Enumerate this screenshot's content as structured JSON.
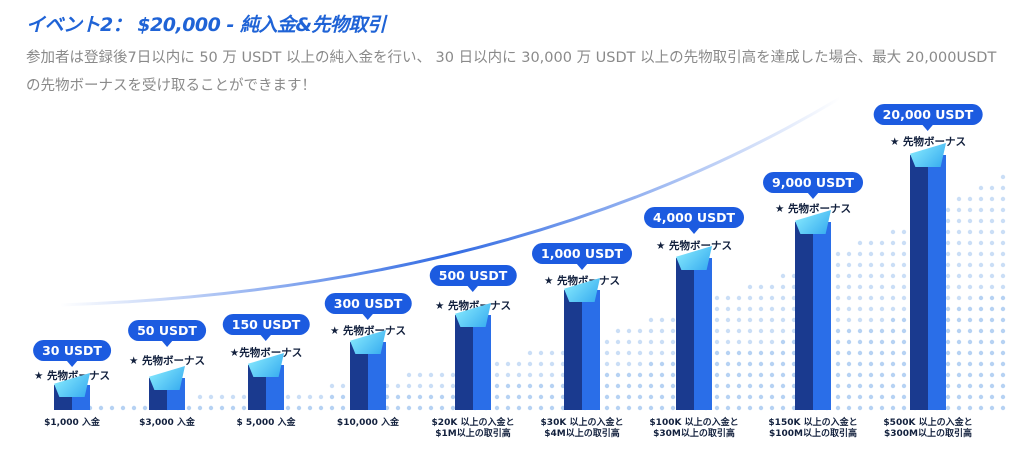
{
  "header": {
    "title": "イベント2： $20,000 - 純入金&先物取引",
    "description": "参加者は登録後7日以内に 50 万 USDT 以上の純入金を行い、 30 日以内に 30,000 万 USDT 以上の先物取引高を達成した場合、最大 20,000USDT の先物ボーナスを受け取ることができます！"
  },
  "colors": {
    "accent": "#1c5be0",
    "bar_dark": "#1a3a8f",
    "bar_light": "#2a6ee8",
    "cap": "#5fd4f7",
    "text_dark": "#12203d"
  },
  "tiers": [
    {
      "reward": "30 USDT",
      "bonus": "★ 先物ボーナス",
      "condition_1": "$1,000 入金",
      "condition_2": ""
    },
    {
      "reward": "50 USDT",
      "bonus": "★ 先物ボーナス",
      "condition_1": "$3,000 入金",
      "condition_2": ""
    },
    {
      "reward": "150 USDT",
      "bonus": "★先物ボーナス",
      "condition_1": "$ 5,000 入金",
      "condition_2": ""
    },
    {
      "reward": "300 USDT",
      "bonus": "★ 先物ボーナス",
      "condition_1": "$10,000 入金",
      "condition_2": ""
    },
    {
      "reward": "500 USDT",
      "bonus": "★ 先物ボーナス",
      "condition_1": "$20K 以上の入金と",
      "condition_2": "$1M以上の取引高"
    },
    {
      "reward": "1,000 USDT",
      "bonus": "★ 先物ボーナス",
      "condition_1": "$30K 以上の入金と",
      "condition_2": "$4M以上の取引高"
    },
    {
      "reward": "4,000 USDT",
      "bonus": "★ 先物ボーナス",
      "condition_1": "$100K 以上の入金と",
      "condition_2": "$30M以上の取引高"
    },
    {
      "reward": "9,000 USDT",
      "bonus": "★ 先物ボーナス",
      "condition_1": "$150K 以上の入金と",
      "condition_2": "$100M以上の取引高"
    },
    {
      "reward": "20,000 USDT",
      "bonus": "★ 先物ボーナス",
      "condition_1": "$500K 以上の入金と",
      "condition_2": "$300M以上の取引高"
    }
  ]
}
